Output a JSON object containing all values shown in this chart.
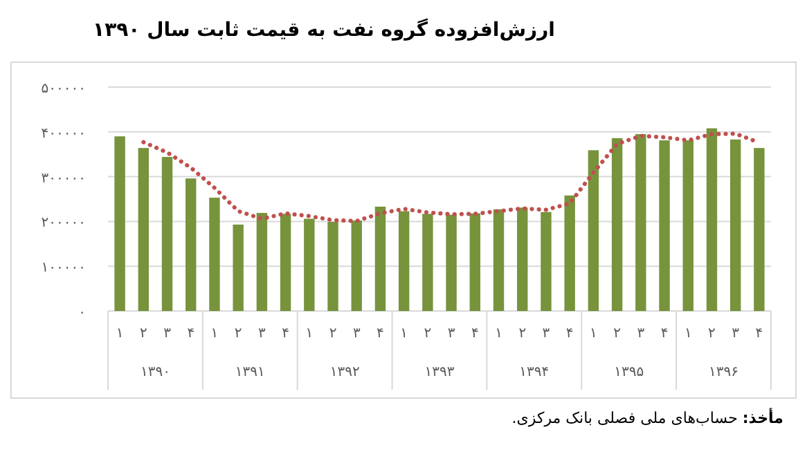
{
  "chart_data": {
    "type": "bar",
    "title": "ارزش‌افزوده گروه نفت به قیمت ثابت سال ۱۳۹۰",
    "categories": [
      "۱",
      "۲",
      "۳",
      "۴",
      "۱",
      "۲",
      "۳",
      "۴",
      "۱",
      "۲",
      "۳",
      "۴",
      "۱",
      "۲",
      "۳",
      "۴",
      "۱",
      "۲",
      "۳",
      "۴",
      "۱",
      "۲",
      "۳",
      "۴",
      "۱",
      "۲",
      "۳",
      "۴"
    ],
    "series": [
      {
        "color": "#77933c",
        "values": [
          390000,
          364000,
          344000,
          296000,
          253000,
          193000,
          219000,
          217000,
          206000,
          199000,
          202000,
          233000,
          223000,
          217000,
          215000,
          218000,
          227000,
          231000,
          221000,
          258000,
          359000,
          386000,
          395000,
          381000,
          381000,
          408000,
          383000,
          364000
        ]
      },
      {
        "type": "line",
        "color": "#c0504d",
        "line_style": "dotted",
        "values": [
          null,
          377000,
          354000,
          320000,
          275000,
          223000,
          206000,
          218000,
          212000,
          203000,
          201000,
          218000,
          228000,
          220000,
          216000,
          217000,
          223000,
          229000,
          226000,
          240000,
          309000,
          373000,
          391000,
          388000,
          381000,
          395000,
          396000,
          376000
        ]
      }
    ],
    "ylim": [
      0,
      500000
    ],
    "yticks": [
      {
        "value": 0,
        "label": "۰"
      },
      {
        "value": 100000,
        "label": "۱۰۰۰۰۰"
      },
      {
        "value": 200000,
        "label": "۲۰۰۰۰۰"
      },
      {
        "value": 300000,
        "label": "۳۰۰۰۰۰"
      },
      {
        "value": 400000,
        "label": "۴۰۰۰۰۰"
      },
      {
        "value": 500000,
        "label": "۵۰۰۰۰۰"
      }
    ],
    "grid": "y",
    "annotations": [
      "۱۳۹۰",
      "۱۳۹۱",
      "۱۳۹۲",
      "۱۳۹۳",
      "۱۳۹۴",
      "۱۳۹۵",
      "۱۳۹۶",
      "مأخذ: حساب‌های ملی فصلی بانک مرکزی."
    ]
  }
}
